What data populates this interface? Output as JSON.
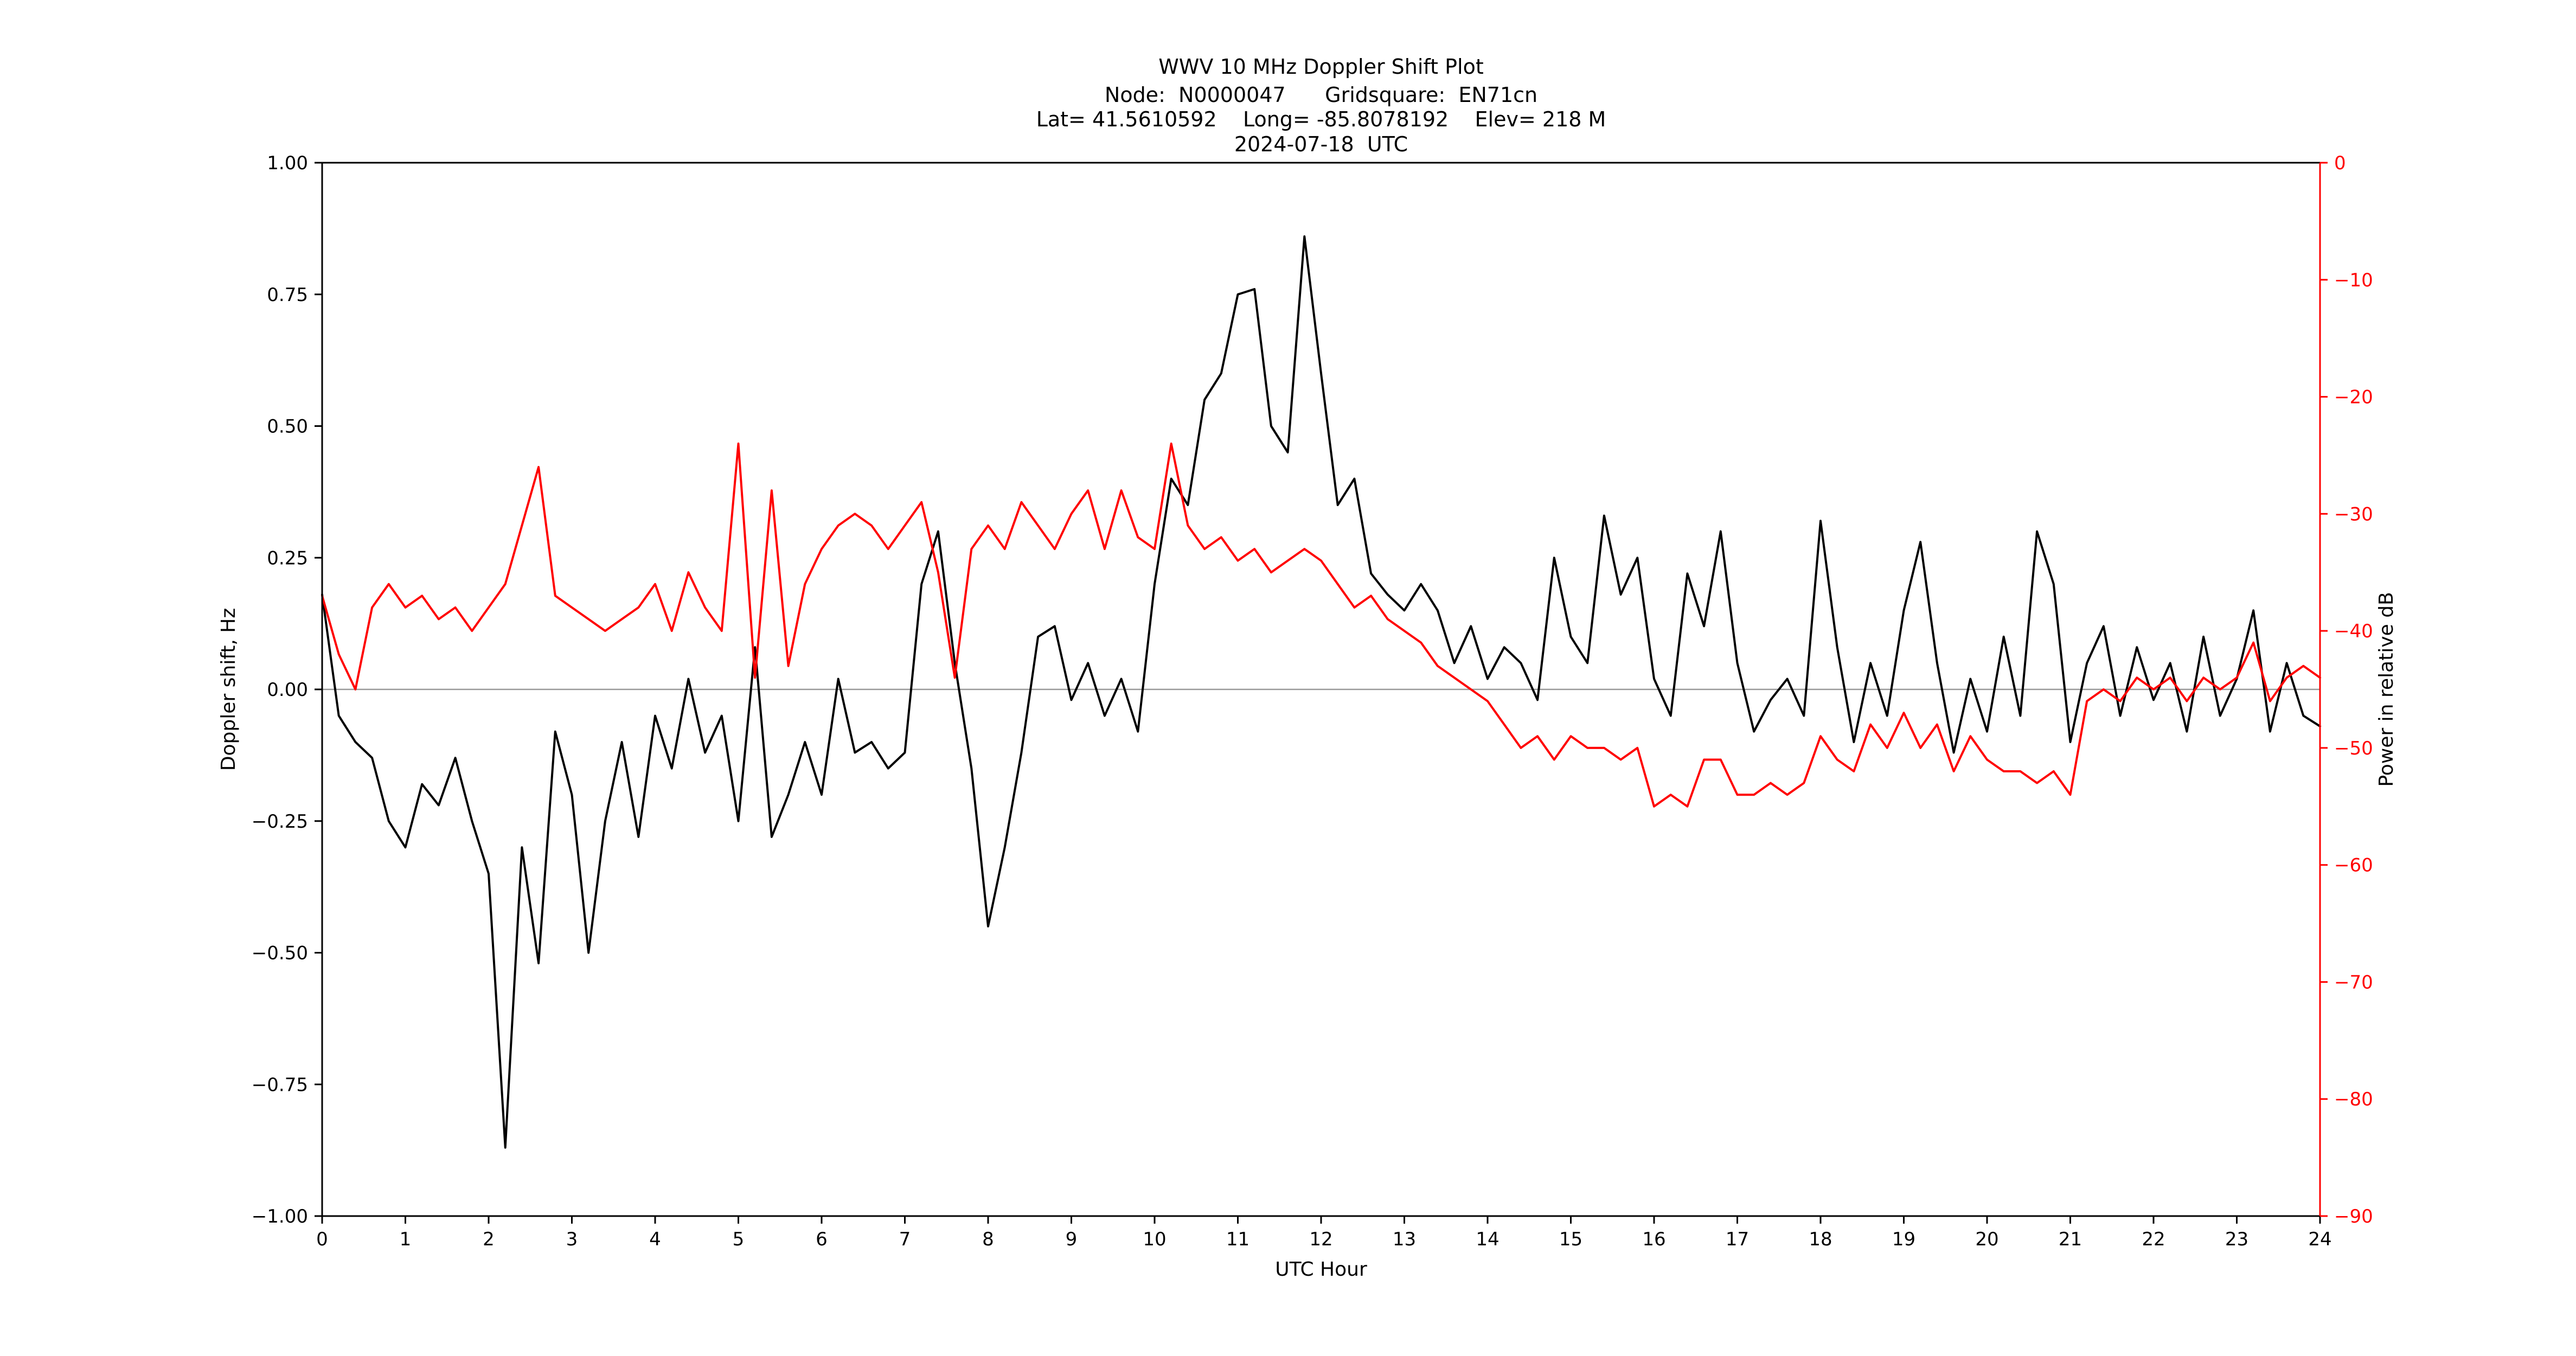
{
  "title": {
    "line1": "WWV 10 MHz Doppler Shift Plot",
    "line2": "Node:  N0000047      Gridsquare:  EN71cn",
    "line3": "Lat= 41.5610592    Long= -85.8078192    Elev= 218 M",
    "line4": "2024-07-18  UTC"
  },
  "chart_data": {
    "type": "line",
    "title": "WWV 10 MHz Doppler Shift Plot",
    "xlabel": "UTC Hour",
    "ylabel_left": "Doppler shift, Hz",
    "ylabel_right": "Power in relative dB",
    "x_range": [
      0,
      24
    ],
    "y_left_range": [
      -1.0,
      1.0
    ],
    "y_right_range": [
      -90,
      0
    ],
    "grid": "off",
    "legend": "none",
    "zero_line_value": 0.0,
    "zero_line_color": "#999999",
    "right_axis_color": "#ff0000",
    "x_ticks": [
      0,
      1,
      2,
      3,
      4,
      5,
      6,
      7,
      8,
      9,
      10,
      11,
      12,
      13,
      14,
      15,
      16,
      17,
      18,
      19,
      20,
      21,
      22,
      23,
      24
    ],
    "y_left_ticks": [
      -1.0,
      -0.75,
      -0.5,
      -0.25,
      0.0,
      0.25,
      0.5,
      0.75,
      1.0
    ],
    "y_right_ticks": [
      -90,
      -80,
      -70,
      -60,
      -50,
      -40,
      -30,
      -20,
      -10,
      0
    ],
    "x": [
      0,
      0.2,
      0.4,
      0.6,
      0.8,
      1,
      1.2,
      1.4,
      1.6,
      1.8,
      2,
      2.2,
      2.4,
      2.6,
      2.8,
      3,
      3.2,
      3.4,
      3.6,
      3.8,
      4,
      4.2,
      4.4,
      4.6,
      4.8,
      5,
      5.2,
      5.4,
      5.6,
      5.8,
      6,
      6.2,
      6.4,
      6.6,
      6.8,
      7,
      7.2,
      7.4,
      7.6,
      7.8,
      8,
      8.2,
      8.4,
      8.6,
      8.8,
      9,
      9.2,
      9.4,
      9.6,
      9.8,
      10,
      10.2,
      10.4,
      10.6,
      10.8,
      11,
      11.2,
      11.4,
      11.6,
      11.8,
      12,
      12.2,
      12.4,
      12.6,
      12.8,
      13,
      13.2,
      13.4,
      13.6,
      13.8,
      14,
      14.2,
      14.4,
      14.6,
      14.8,
      15,
      15.2,
      15.4,
      15.6,
      15.8,
      16,
      16.2,
      16.4,
      16.6,
      16.8,
      17,
      17.2,
      17.4,
      17.6,
      17.8,
      18,
      18.2,
      18.4,
      18.6,
      18.8,
      19,
      19.2,
      19.4,
      19.6,
      19.8,
      20,
      20.2,
      20.4,
      20.6,
      20.8,
      21,
      21.2,
      21.4,
      21.6,
      21.8,
      22,
      22.2,
      22.4,
      22.6,
      22.8,
      23,
      23.2,
      23.4,
      23.6,
      23.8,
      24
    ],
    "series": [
      {
        "name": "doppler-shift-hz",
        "axis": "left",
        "color": "#000000",
        "values": [
          0.18,
          -0.05,
          -0.1,
          -0.13,
          -0.25,
          -0.3,
          -0.18,
          -0.22,
          -0.13,
          -0.25,
          -0.35,
          -0.87,
          -0.3,
          -0.52,
          -0.08,
          -0.2,
          -0.5,
          -0.25,
          -0.1,
          -0.28,
          -0.05,
          -0.15,
          0.02,
          -0.12,
          -0.05,
          -0.25,
          0.08,
          -0.28,
          -0.2,
          -0.1,
          -0.2,
          0.02,
          -0.12,
          -0.1,
          -0.15,
          -0.12,
          0.2,
          0.3,
          0.05,
          -0.15,
          -0.45,
          -0.3,
          -0.12,
          0.1,
          0.12,
          -0.02,
          0.05,
          -0.05,
          0.02,
          -0.08,
          0.2,
          0.4,
          0.35,
          0.55,
          0.6,
          0.75,
          0.76,
          0.5,
          0.45,
          0.86,
          0.6,
          0.35,
          0.4,
          0.22,
          0.18,
          0.15,
          0.2,
          0.15,
          0.05,
          0.12,
          0.02,
          0.08,
          0.05,
          -0.02,
          0.25,
          0.1,
          0.05,
          0.33,
          0.18,
          0.25,
          0.02,
          -0.05,
          0.22,
          0.12,
          0.3,
          0.05,
          -0.08,
          -0.02,
          0.02,
          -0.05,
          0.32,
          0.08,
          -0.1,
          0.05,
          -0.05,
          0.15,
          0.28,
          0.05,
          -0.12,
          0.02,
          -0.08,
          0.1,
          -0.05,
          0.3,
          0.2,
          -0.1,
          0.05,
          0.12,
          -0.05,
          0.08,
          -0.02,
          0.05,
          -0.08,
          0.1,
          -0.05,
          0.02,
          0.15,
          -0.08,
          0.05,
          -0.05,
          -0.07
        ]
      },
      {
        "name": "power-relative-db",
        "axis": "right",
        "color": "#ff0000",
        "values": [
          -37,
          -42,
          -45,
          -38,
          -36,
          -38,
          -37,
          -39,
          -38,
          -40,
          -38,
          -36,
          -31,
          -26,
          -37,
          -38,
          -39,
          -40,
          -39,
          -38,
          -36,
          -40,
          -35,
          -38,
          -40,
          -24,
          -44,
          -28,
          -43,
          -36,
          -33,
          -31,
          -30,
          -31,
          -33,
          -31,
          -29,
          -35,
          -44,
          -33,
          -31,
          -33,
          -29,
          -31,
          -33,
          -30,
          -28,
          -33,
          -28,
          -32,
          -33,
          -24,
          -31,
          -33,
          -32,
          -34,
          -33,
          -35,
          -34,
          -33,
          -34,
          -36,
          -38,
          -37,
          -39,
          -40,
          -41,
          -43,
          -44,
          -45,
          -46,
          -48,
          -50,
          -49,
          -51,
          -49,
          -50,
          -50,
          -51,
          -50,
          -55,
          -54,
          -55,
          -51,
          -51,
          -54,
          -54,
          -53,
          -54,
          -53,
          -49,
          -51,
          -52,
          -48,
          -50,
          -47,
          -50,
          -48,
          -52,
          -49,
          -51,
          -52,
          -52,
          -53,
          -52,
          -54,
          -46,
          -45,
          -46,
          -44,
          -45,
          -44,
          -46,
          -44,
          -45,
          -44,
          -41,
          -46,
          -44,
          -43,
          -44
        ]
      }
    ]
  }
}
